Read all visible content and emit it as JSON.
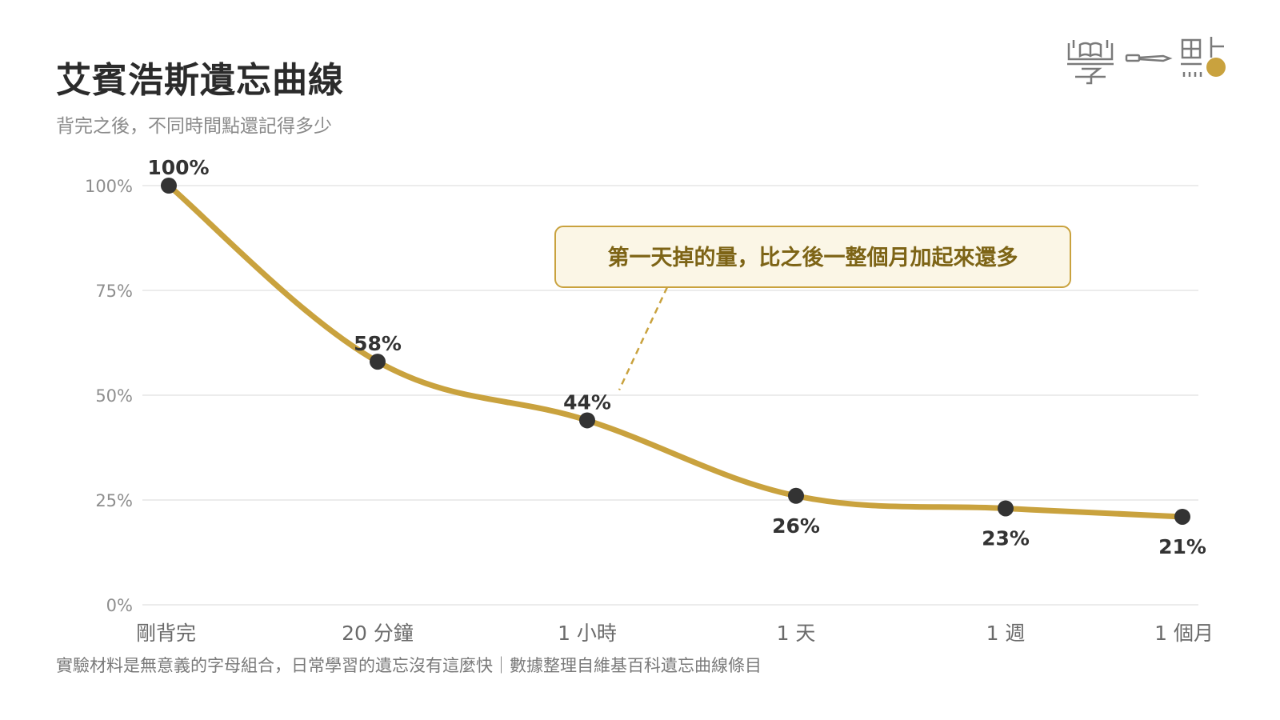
{
  "header": {
    "title": "艾賓浩斯遺忘曲線",
    "subtitle": "背完之後，不同時間點還記得多少"
  },
  "footnote": "實驗材料是無意義的字母組合，日常學習的遺忘沒有這麼快｜數據整理自維基百科遺忘曲線條目",
  "logo": {
    "text": "學一點",
    "icon": "book-pen-dot-logo-icon",
    "accent": "#c9a23e"
  },
  "colors": {
    "line": "#c9a23e",
    "marker": "#333333",
    "grid": "#e6e6e6",
    "callout_fill": "#fbf6e6",
    "callout_border": "#c9a23e",
    "callout_text": "#7d6416"
  },
  "chart_data": {
    "type": "line",
    "title": "艾賓浩斯遺忘曲線",
    "subtitle": "背完之後，不同時間點還記得多少",
    "xlabel": "",
    "ylabel": "",
    "categories": [
      "剛背完",
      "20 分鐘",
      "1 小時",
      "1 天",
      "1 週",
      "1 個月"
    ],
    "values": [
      100,
      58,
      44,
      26,
      23,
      21
    ],
    "data_labels": [
      "100%",
      "58%",
      "44%",
      "26%",
      "23%",
      "21%"
    ],
    "ylim": [
      0,
      100
    ],
    "yticks": [
      0,
      25,
      50,
      75,
      100
    ],
    "ytick_labels": [
      "0%",
      "25%",
      "50%",
      "75%",
      "100%"
    ],
    "grid": true,
    "legend": "none",
    "annotation": {
      "text": "第一天掉的量，比之後一整個月加起來還多",
      "points_to_category": "1 小時"
    }
  }
}
